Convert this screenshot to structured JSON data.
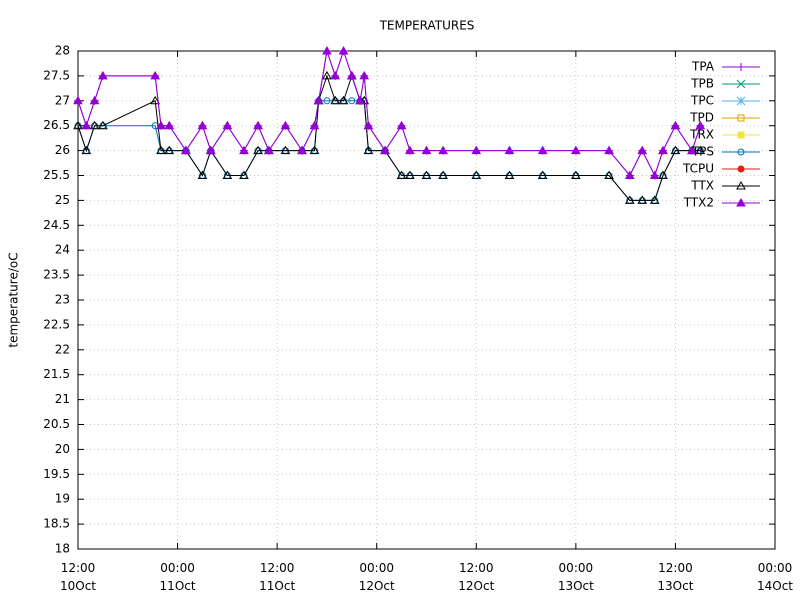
{
  "chart_data": {
    "type": "line",
    "title": "TEMPERATURES",
    "y_label": "temperature/oC",
    "x": [
      0,
      1,
      2,
      3,
      9.3,
      10,
      11,
      13,
      15,
      16,
      18,
      20,
      21.7,
      23,
      25,
      27,
      28.5,
      29,
      30,
      31,
      32,
      33,
      34,
      34.5,
      35,
      37,
      39,
      40,
      42,
      44,
      48,
      52,
      56,
      60,
      64,
      66.5,
      68,
      69.5,
      70.5,
      72,
      74,
      75
    ],
    "xlim": [
      0,
      84
    ],
    "xticks": [
      {
        "value": 0,
        "label": "12:00\n10Oct"
      },
      {
        "value": 12,
        "label": "00:00\n11Oct"
      },
      {
        "value": 24,
        "label": "12:00\n11Oct"
      },
      {
        "value": 36,
        "label": "00:00\n12Oct"
      },
      {
        "value": 48,
        "label": "12:00\n12Oct"
      },
      {
        "value": 60,
        "label": "00:00\n13Oct"
      },
      {
        "value": 72,
        "label": "12:00\n13Oct"
      },
      {
        "value": 84,
        "label": "00:00\n14Oct"
      }
    ],
    "ylim": [
      18,
      28
    ],
    "yticks": [
      18,
      18.5,
      19,
      19.5,
      20,
      20.5,
      21,
      21.5,
      22,
      22.5,
      23,
      23.5,
      24,
      24.5,
      25,
      25.5,
      26,
      26.5,
      27,
      27.5,
      28
    ],
    "grid": true,
    "legend": "top right",
    "series": [
      {
        "name": "TPA",
        "color": "#9400d3",
        "marker": "plus",
        "values": [
          27,
          26.5,
          27,
          27.5,
          27.5,
          26.5,
          26.5,
          26,
          26.5,
          26,
          26.5,
          26,
          26.5,
          26,
          26.5,
          26,
          26.5,
          27,
          28,
          27.5,
          28,
          27.5,
          27,
          27.5,
          26.5,
          26,
          26.5,
          26,
          26,
          26,
          26,
          26,
          26,
          26,
          26,
          25.5,
          26,
          25.5,
          26,
          26.5,
          26,
          26.5
        ]
      },
      {
        "name": "TPB",
        "color": "#009e73",
        "marker": "cross",
        "values": [
          null,
          null,
          null,
          null,
          null,
          null,
          null,
          null,
          null,
          null,
          null,
          null,
          null,
          null,
          null,
          null,
          null,
          null,
          null,
          null,
          null,
          null,
          null,
          null,
          null,
          null,
          null,
          null,
          null,
          null,
          null,
          null,
          null,
          null,
          null,
          null,
          null,
          null,
          null,
          null,
          null,
          null
        ]
      },
      {
        "name": "TPC",
        "color": "#56b4e9",
        "marker": "star",
        "values": [
          null,
          null,
          null,
          null,
          null,
          null,
          null,
          null,
          null,
          null,
          null,
          null,
          null,
          null,
          null,
          null,
          null,
          null,
          null,
          null,
          null,
          null,
          null,
          null,
          null,
          null,
          null,
          null,
          null,
          null,
          null,
          null,
          null,
          null,
          null,
          null,
          null,
          null,
          null,
          null,
          null,
          null
        ]
      },
      {
        "name": "TPD",
        "color": "#e69f00",
        "marker": "square-open",
        "values": [
          null,
          null,
          null,
          null,
          null,
          null,
          null,
          null,
          null,
          null,
          null,
          null,
          null,
          null,
          null,
          null,
          null,
          null,
          null,
          null,
          null,
          null,
          null,
          null,
          null,
          null,
          null,
          null,
          null,
          null,
          null,
          null,
          null,
          null,
          null,
          null,
          null,
          null,
          null,
          null,
          null,
          null
        ]
      },
      {
        "name": "TRX",
        "color": "#f0e442",
        "marker": "square",
        "values": [
          null,
          null,
          null,
          null,
          null,
          null,
          null,
          null,
          null,
          null,
          null,
          null,
          null,
          null,
          null,
          null,
          null,
          null,
          null,
          null,
          null,
          null,
          null,
          null,
          null,
          null,
          null,
          null,
          null,
          null,
          null,
          null,
          null,
          null,
          null,
          null,
          null,
          null,
          null,
          null,
          null,
          null
        ]
      },
      {
        "name": "TPS",
        "color": "#0072b2",
        "marker": "circle-open",
        "values": [
          26.5,
          26,
          26.5,
          26.5,
          26.5,
          26,
          26,
          26,
          25.5,
          26,
          25.5,
          25.5,
          26,
          26,
          26,
          26,
          26,
          27,
          27,
          27,
          27,
          27,
          27,
          27,
          26,
          26,
          25.5,
          25.5,
          25.5,
          25.5,
          25.5,
          25.5,
          25.5,
          25.5,
          25.5,
          25,
          25,
          25,
          25.5,
          26,
          26,
          26
        ]
      },
      {
        "name": "TCPU",
        "color": "#e51e10",
        "marker": "circle",
        "values": [
          null,
          null,
          null,
          null,
          null,
          null,
          null,
          null,
          null,
          null,
          null,
          null,
          null,
          null,
          null,
          null,
          null,
          null,
          null,
          null,
          null,
          null,
          null,
          null,
          null,
          null,
          null,
          null,
          null,
          null,
          null,
          null,
          null,
          null,
          null,
          null,
          null,
          null,
          null,
          null,
          null,
          null
        ]
      },
      {
        "name": "TTX",
        "color": "#000000",
        "marker": "triangle-open",
        "values": [
          26.5,
          26,
          26.5,
          26.5,
          27,
          26,
          26,
          26,
          25.5,
          26,
          25.5,
          25.5,
          26,
          26,
          26,
          26,
          26,
          27,
          27.5,
          27,
          27,
          27.5,
          27,
          27,
          26,
          26,
          25.5,
          25.5,
          25.5,
          25.5,
          25.5,
          25.5,
          25.5,
          25.5,
          25.5,
          25,
          25,
          25,
          25.5,
          26,
          26,
          26
        ]
      },
      {
        "name": "TTX2",
        "color": "#9400d3",
        "marker": "triangle",
        "values": [
          27,
          26.5,
          27,
          27.5,
          27.5,
          26.5,
          26.5,
          26,
          26.5,
          26,
          26.5,
          26,
          26.5,
          26,
          26.5,
          26,
          26.5,
          27,
          28,
          27.5,
          28,
          27.5,
          27,
          27.5,
          26.5,
          26,
          26.5,
          26,
          26,
          26,
          26,
          26,
          26,
          26,
          26,
          25.5,
          26,
          25.5,
          26,
          26.5,
          26,
          26.5
        ]
      }
    ]
  }
}
